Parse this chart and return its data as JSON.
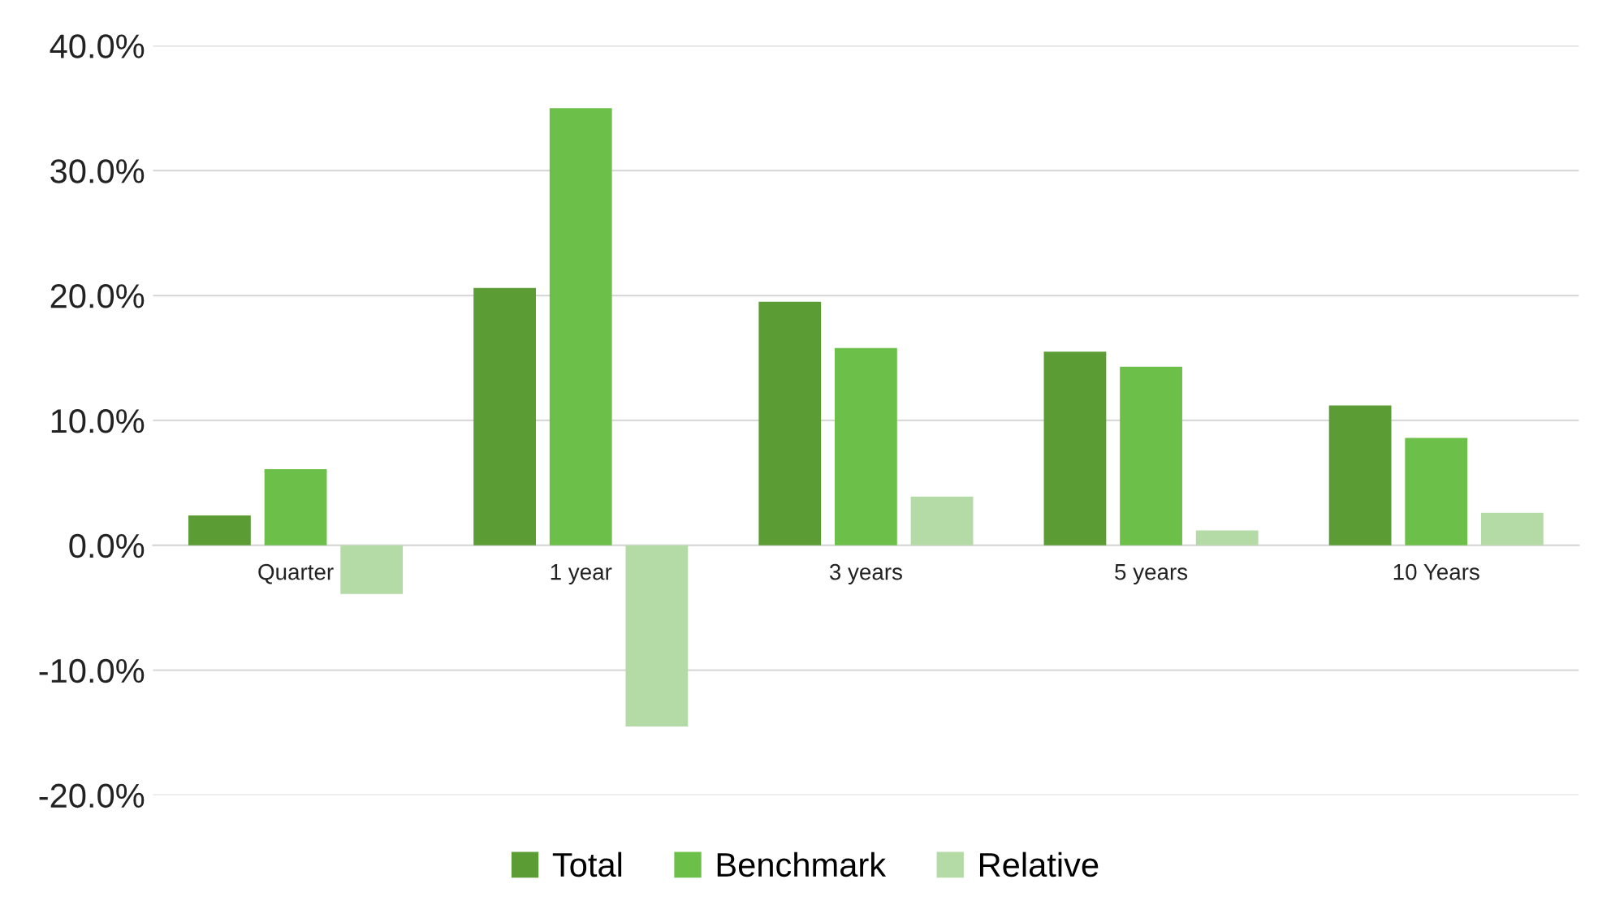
{
  "chart_data": {
    "type": "bar",
    "categories": [
      "Quarter",
      "1 year",
      "3 years",
      "5 years",
      "10 Years"
    ],
    "series": [
      {
        "name": "Total",
        "color": "#5b9c35",
        "values": [
          2.4,
          20.6,
          19.5,
          15.5,
          11.2
        ]
      },
      {
        "name": "Benchmark",
        "color": "#6cc04a",
        "values": [
          6.1,
          35.0,
          15.8,
          14.3,
          8.6
        ]
      },
      {
        "name": "Relative",
        "color": "#b4dba6",
        "values": [
          -3.9,
          -14.5,
          3.9,
          1.2,
          2.6
        ]
      }
    ],
    "ylim": [
      -20,
      40
    ],
    "yticks": [
      {
        "value": -20,
        "label": "-20.0%"
      },
      {
        "value": -10,
        "label": "-10.0%"
      },
      {
        "value": 0,
        "label": "0.0%"
      },
      {
        "value": 10,
        "label": "10.0%"
      },
      {
        "value": 20,
        "label": "20.0%"
      },
      {
        "value": 30,
        "label": "30.0%"
      },
      {
        "value": 40,
        "label": "40.0%"
      }
    ],
    "grid": "y",
    "legend": "bottom"
  }
}
